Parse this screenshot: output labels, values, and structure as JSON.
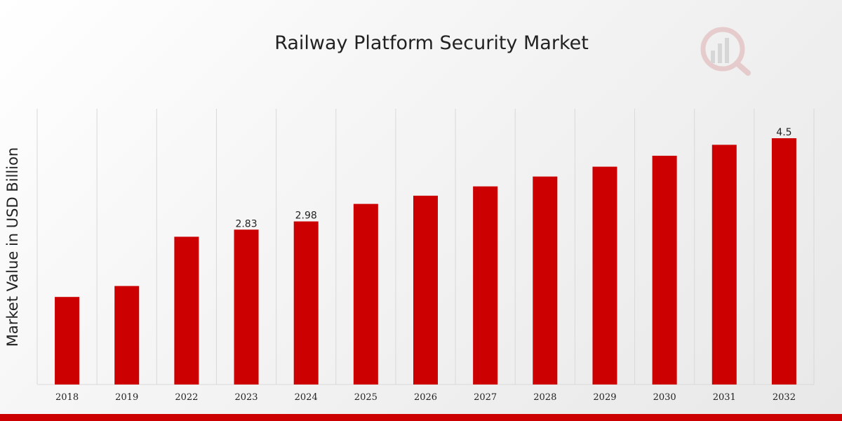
{
  "colors": {
    "bar": "#cc0000",
    "bottom_band": "#cc0000",
    "grid": "#d9d9d9",
    "logo": "#d9a0a0"
  },
  "logo": {
    "icon": "magnifier-bar-chart-icon"
  },
  "chart_data": {
    "type": "bar",
    "title": "Railway Platform Security Market",
    "xlabel": "",
    "ylabel": "Market Value in USD Billion",
    "categories": [
      "2018",
      "2019",
      "2022",
      "2023",
      "2024",
      "2025",
      "2026",
      "2027",
      "2028",
      "2029",
      "2030",
      "2031",
      "2032"
    ],
    "values": [
      1.6,
      1.8,
      2.7,
      2.83,
      2.98,
      3.3,
      3.45,
      3.62,
      3.8,
      3.98,
      4.18,
      4.38,
      4.5
    ],
    "data_labels": [
      null,
      null,
      null,
      "2.83",
      "2.98",
      null,
      null,
      null,
      null,
      null,
      null,
      null,
      "4.5"
    ],
    "ylim": [
      0,
      5
    ],
    "grid": "vertical",
    "legend": "none"
  }
}
